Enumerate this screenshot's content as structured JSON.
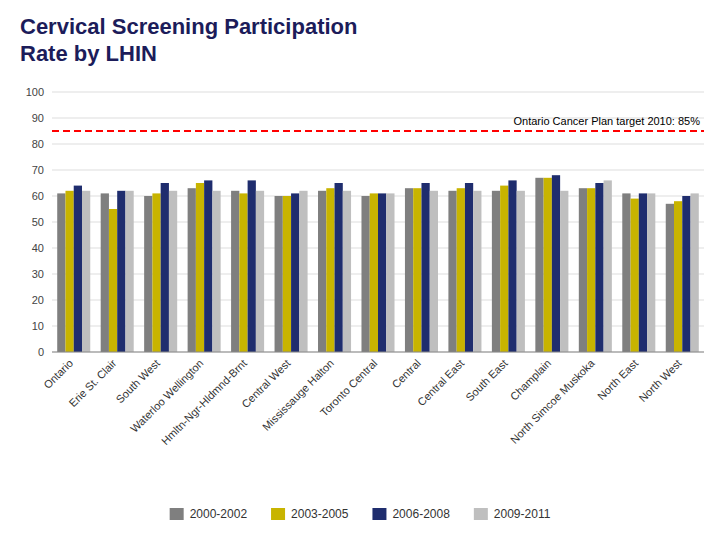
{
  "chart_data": {
    "type": "bar",
    "title": "Cervical Screening Participation\nRate by LHIN",
    "categories": [
      "Ontario",
      "Erie St. Clair",
      "South West",
      "Waterloo Wellington",
      "Hmltn-Ngr-Hldmnd-Brnt",
      "Central West",
      "Mississauge Halton",
      "Toronto Central",
      "Central",
      "Central East",
      "South East",
      "Champlain",
      "North Simcoe Muskoka",
      "North East",
      "North West"
    ],
    "series": [
      {
        "name": "2000-2002",
        "color": "#7F7F7F",
        "values": [
          61,
          61,
          60,
          63,
          62,
          60,
          62,
          60,
          63,
          62,
          62,
          67,
          63,
          61,
          57
        ]
      },
      {
        "name": "2003-2005",
        "color": "#C8B400",
        "values": [
          62,
          55,
          61,
          65,
          61,
          60,
          63,
          61,
          63,
          63,
          64,
          67,
          63,
          59,
          58
        ]
      },
      {
        "name": "2006-2008",
        "color": "#1F2D6E",
        "values": [
          64,
          62,
          65,
          66,
          66,
          61,
          65,
          61,
          65,
          65,
          66,
          68,
          65,
          61,
          60
        ]
      },
      {
        "name": "2009-2011",
        "color": "#BFBFBF",
        "values": [
          62,
          62,
          62,
          62,
          62,
          62,
          62,
          61,
          62,
          62,
          62,
          62,
          66,
          61,
          61
        ]
      }
    ],
    "annotations": [
      {
        "text": "Ontario  Cancer Plan target 2010: 85%",
        "value": 85,
        "color": "red",
        "line_style": "dashed"
      }
    ],
    "ylim": [
      0,
      100
    ],
    "yticks": [
      0,
      10,
      20,
      30,
      40,
      50,
      60,
      70,
      80,
      90,
      100
    ],
    "grid": true,
    "legend": "bottom"
  }
}
